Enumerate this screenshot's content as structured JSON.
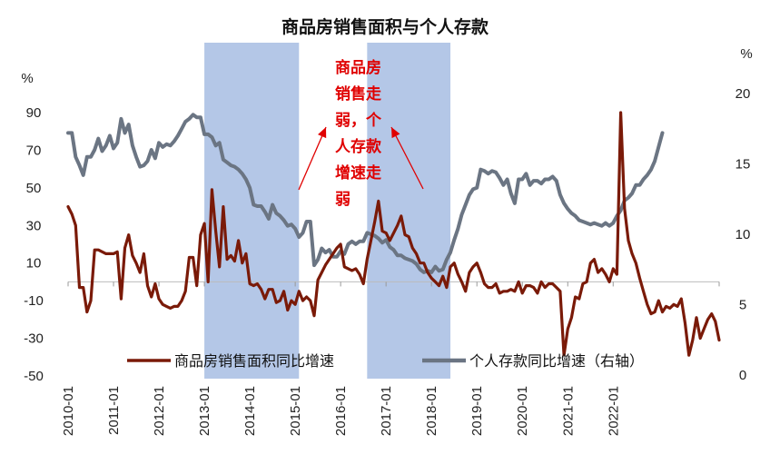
{
  "chart_data": {
    "type": "line",
    "title": "商品房销售面积与个人存款",
    "left_axis": {
      "unit": "%",
      "ylim": [
        -50,
        90
      ],
      "ticks": [
        90,
        70,
        50,
        30,
        10,
        -10,
        -30,
        -50
      ]
    },
    "right_axis": {
      "unit": "%",
      "ylim": [
        0,
        20
      ],
      "ticks": [
        20,
        15,
        10,
        5,
        0
      ]
    },
    "x_ticks": [
      "2010-01",
      "2011-01",
      "2012-01",
      "2013-01",
      "2014-01",
      "2015-01",
      "2016-01",
      "2017-01",
      "2018-01",
      "2019-01",
      "2020-01",
      "2021-01",
      "2022-01"
    ],
    "shaded_periods": [
      {
        "start": "2013-01",
        "end": "2015-02"
      },
      {
        "start": "2016-08",
        "end": "2018-06"
      }
    ],
    "annotation": {
      "lines": [
        "商品房",
        "销售走",
        "弱，个",
        "人存款",
        "增速走",
        "弱"
      ],
      "color": "#e00000"
    },
    "legend_position": "bottom",
    "series": [
      {
        "name": "商品房销售面积同比增速",
        "axis": "left",
        "color": "#7a1a08",
        "values": [
          40,
          36,
          30,
          -3,
          -3,
          -16,
          -10,
          17,
          17,
          16,
          15,
          15,
          15,
          16,
          -9,
          18,
          25,
          14,
          10,
          5,
          15,
          -2,
          -8,
          -1,
          -9,
          -12,
          -13,
          -14,
          -13,
          -13,
          -10,
          -5,
          13,
          13,
          -2,
          25,
          31,
          0,
          49,
          27,
          8,
          40,
          12,
          14,
          11,
          22,
          10,
          15,
          -1,
          -2,
          -1,
          -4,
          -9,
          -4,
          -4,
          -11,
          -10,
          -5,
          -15,
          -10,
          -12,
          -5,
          -10,
          -8,
          -10,
          -18,
          1,
          5,
          9,
          12,
          15,
          18,
          20,
          8,
          7,
          6,
          7,
          4,
          -1,
          12,
          22,
          32,
          43,
          27,
          26,
          22,
          26,
          30,
          35,
          25,
          24,
          18,
          15,
          10,
          10,
          5,
          2,
          0,
          -2,
          3,
          -3,
          8,
          10,
          4,
          0,
          -5,
          5,
          8,
          10,
          5,
          -1,
          -3,
          -3,
          -1,
          -6,
          -5,
          -5,
          -4,
          -5,
          0,
          -6,
          -2,
          -2,
          -3,
          -6,
          0,
          -3,
          -1,
          -1,
          -3,
          -5,
          -39,
          -25,
          -19,
          -8,
          -9,
          -1,
          0,
          10,
          12,
          5,
          7,
          4,
          0,
          7,
          4,
          90,
          39,
          22,
          15,
          10,
          2,
          -5,
          -12,
          -17,
          -16,
          -10,
          -16,
          -13,
          -14,
          -12,
          -13,
          -9,
          -22,
          -39,
          -31,
          -19,
          -30,
          -25,
          -20,
          -17,
          -21,
          -31
        ]
      },
      {
        "name": "个人存款同比增速（右轴）",
        "axis": "right",
        "color": "#6b7583",
        "values": [
          17.2,
          17.2,
          15.5,
          14.9,
          14.2,
          15.5,
          15.5,
          16,
          16.8,
          15.9,
          16.3,
          17,
          16.1,
          16.5,
          18.2,
          17.2,
          17.8,
          16.3,
          15.5,
          14.8,
          14.9,
          15.2,
          16,
          15.4,
          16.5,
          16.2,
          16.4,
          16.3,
          16.6,
          17,
          17.5,
          18,
          18.2,
          18.5,
          18.3,
          18.3,
          17.1,
          17.1,
          16.9,
          16.3,
          16.5,
          15.3,
          15.1,
          14.9,
          14.8,
          14.6,
          14.3,
          13.9,
          13.3,
          12.1,
          12,
          12,
          11.6,
          11.1,
          12.1,
          11.5,
          11.3,
          11,
          10.6,
          10.7,
          10.4,
          9.8,
          10.1,
          10.9,
          10.9,
          7.8,
          8.2,
          9,
          8.7,
          8.9,
          8.4,
          8.4,
          8.8,
          8.6,
          9.3,
          9.5,
          9.3,
          9.5,
          9.5,
          10.1,
          10,
          9.9,
          9.7,
          9.4,
          9.6,
          9.1,
          8.9,
          8.5,
          8.5,
          8.3,
          8.2,
          8.1,
          7.9,
          7.5,
          7.3,
          7.4,
          7.3,
          7.7,
          7.4,
          7.5,
          8.2,
          8.7,
          9.6,
          10.4,
          11.4,
          12.1,
          12.8,
          13.2,
          13.3,
          14.6,
          14.5,
          14.3,
          14.5,
          14.4,
          14,
          13.5,
          13.9,
          12.9,
          12.2,
          13.9,
          13.9,
          14.3,
          13.5,
          13.8,
          13.8,
          13.6,
          13.9,
          13.9,
          14.1,
          13.8,
          12.8,
          12.2,
          11.8,
          11.5,
          11.3,
          11,
          10.9,
          10.8,
          10.7,
          10.8,
          10.7,
          10.6,
          10.8,
          10.6,
          10.8,
          11.3,
          11.7,
          12.4,
          12.6,
          12.9,
          13.5,
          13.5,
          13.9,
          14.2,
          14.6,
          15.2,
          16.2,
          17.2
        ]
      }
    ]
  }
}
